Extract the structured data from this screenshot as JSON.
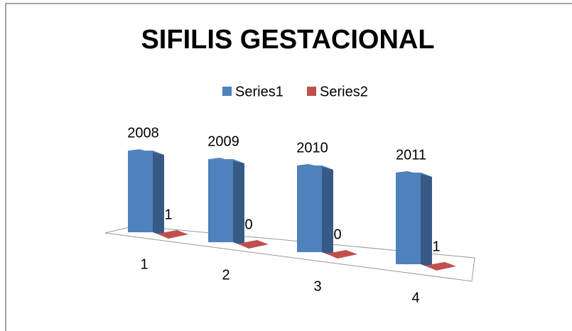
{
  "chart_data": {
    "type": "bar3d",
    "title": "SIFILIS GESTACIONAL",
    "categories": [
      "1",
      "2",
      "3",
      "4"
    ],
    "series": [
      {
        "name": "Series1",
        "color": "#4f81bd",
        "values": [
          2008,
          2009,
          2010,
          2011
        ]
      },
      {
        "name": "Series2",
        "color": "#c0504d",
        "values": [
          1,
          0,
          0,
          1
        ]
      }
    ],
    "legend": "top"
  }
}
